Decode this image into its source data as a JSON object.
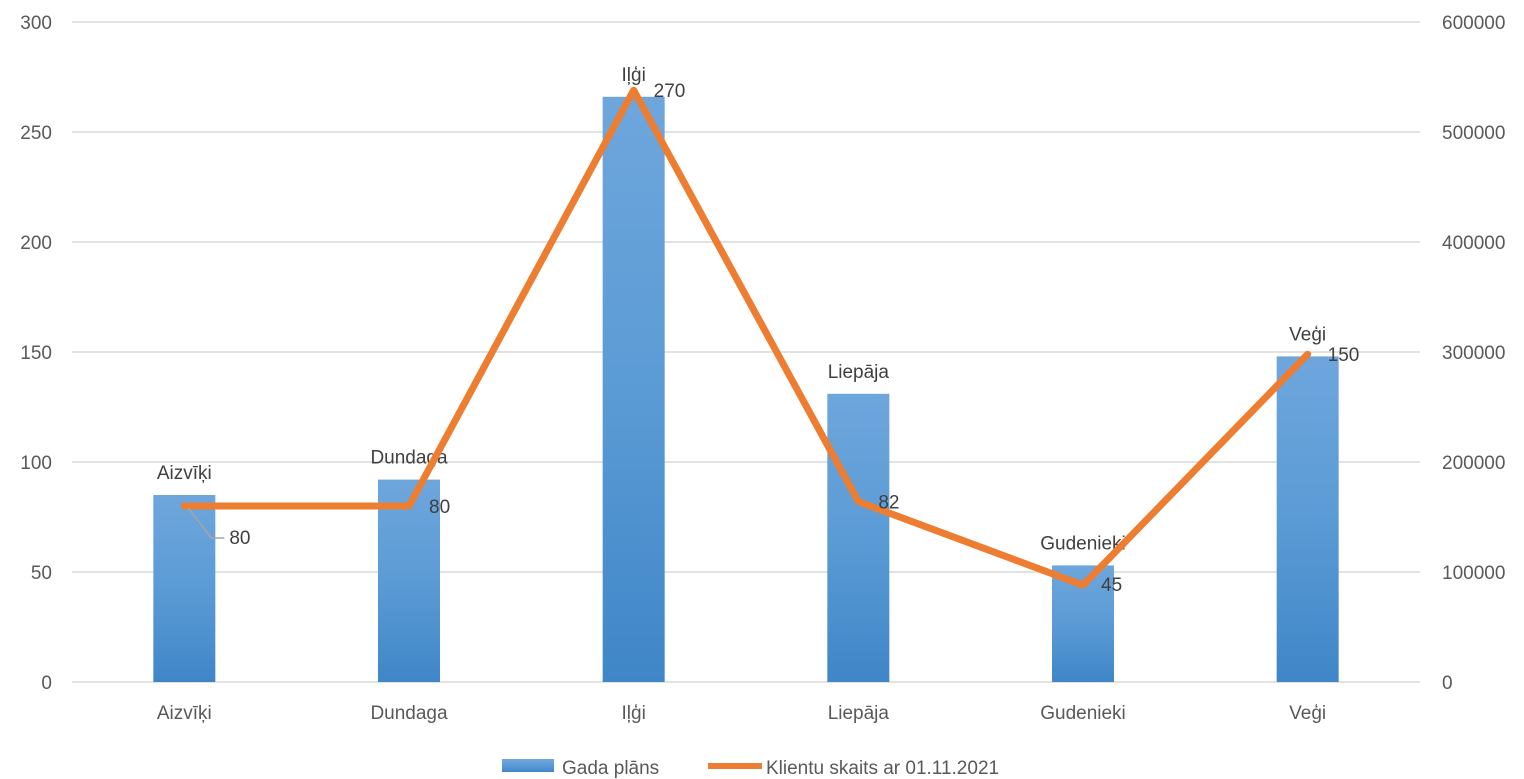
{
  "chart_data": {
    "type": "bar",
    "categories": [
      "Aizvīķi",
      "Dundaga",
      "Iļģi",
      "Liepāja",
      "Gudenieki",
      "Veģi"
    ],
    "series": [
      {
        "name": "Gada plāns",
        "type": "bar",
        "axis": "left",
        "color": "#5b9bd5",
        "values": [
          85,
          92,
          266,
          131,
          53,
          148
        ],
        "labels": [
          "Aizvīķi",
          "Dundaga",
          "Iļģi",
          "Liepāja",
          "Gudenieki",
          "Veģi"
        ]
      },
      {
        "name": "Klientu skaits ar 01.11.2021",
        "type": "line",
        "axis": "right",
        "color": "#ed7d31",
        "values": [
          160000,
          160000,
          538000,
          164000,
          88000,
          298000
        ],
        "labels": [
          "80",
          "80",
          "270",
          "82",
          "45",
          "150"
        ]
      }
    ],
    "y_left": {
      "min": 0,
      "max": 300,
      "step": 50,
      "ticks": [
        "0",
        "50",
        "100",
        "150",
        "200",
        "250",
        "300"
      ]
    },
    "y_right": {
      "min": 0,
      "max": 600000,
      "step": 100000,
      "ticks": [
        "0",
        "100000",
        "200000",
        "300000",
        "400000",
        "500000",
        "600000"
      ]
    },
    "grid": true,
    "legend_position": "bottom"
  }
}
